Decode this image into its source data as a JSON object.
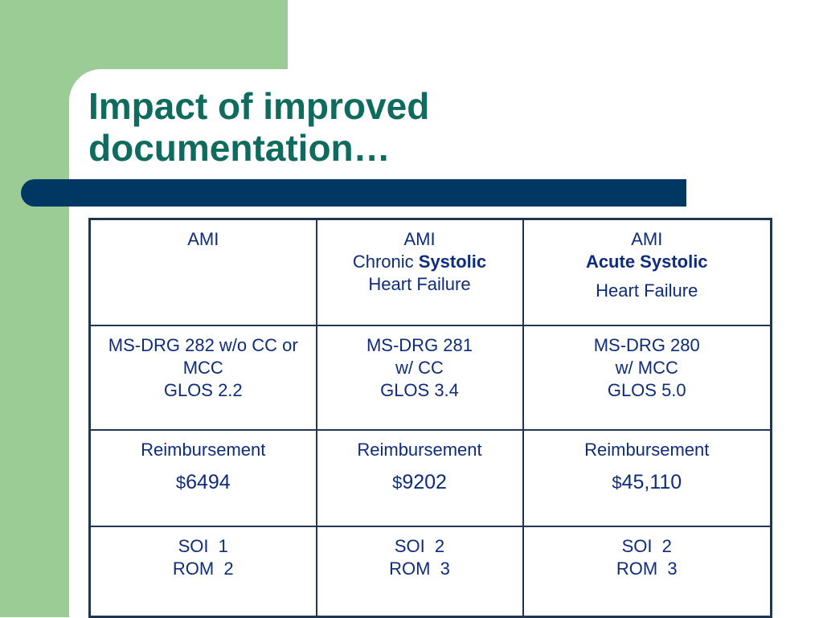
{
  "slide": {
    "title_line1": "Impact of improved",
    "title_line2": "documentation…",
    "colors": {
      "title": "#0e6b5e",
      "text": "#0e2c7c",
      "bar": "#003864",
      "side_block": "#9ccc96"
    }
  },
  "table": {
    "header": [
      {
        "line1": "AMI",
        "line2_plain": "",
        "line2_bold": "",
        "line3": ""
      },
      {
        "line1": "AMI",
        "line2_plain": "Chronic ",
        "line2_bold": "Systolic",
        "line3": "Heart Failure"
      },
      {
        "line1": "AMI",
        "line2_plain": "",
        "line2_bold": "Acute Systolic",
        "line3": "Heart Failure"
      }
    ],
    "drg": [
      {
        "line1": "MS-DRG 282 w/o CC or MCC",
        "line2": "",
        "line3": "GLOS 2.2"
      },
      {
        "line1": "MS-DRG 281",
        "line2": "w/ CC",
        "line3": "GLOS 3.4"
      },
      {
        "line1": "MS-DRG 280",
        "line2": "w/ MCC",
        "line3": "GLOS 5.0"
      }
    ],
    "reimbursement": [
      {
        "label": "Reimbursement",
        "currency": "$",
        "amount": "6494"
      },
      {
        "label": "Reimbursement",
        "currency": "$",
        "amount": "9202"
      },
      {
        "label": "Reimbursement",
        "currency": "$",
        "amount": "45,110"
      }
    ],
    "severity": [
      {
        "soi": "SOI  1",
        "rom": "ROM  2"
      },
      {
        "soi": "SOI  2",
        "rom": "ROM  3"
      },
      {
        "soi": "SOI  2",
        "rom": "ROM  3"
      }
    ]
  }
}
